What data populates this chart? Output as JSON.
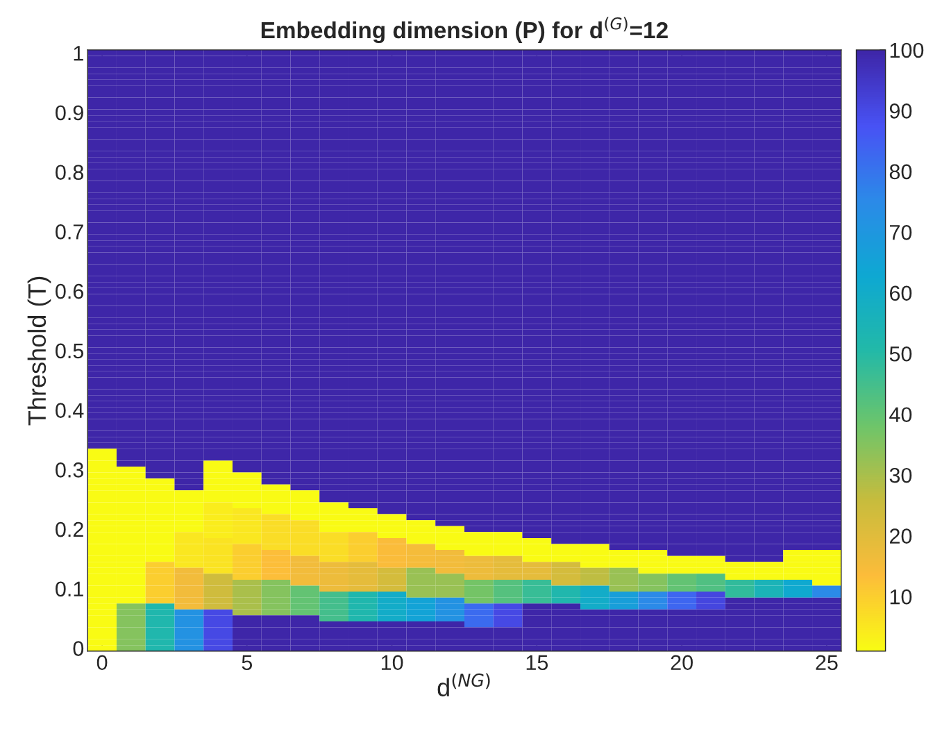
{
  "chart_data": {
    "type": "heatmap",
    "title": "Embedding dimension (P) for d$^{(G)}$=12",
    "xlabel": "d$^{(NG)}$",
    "ylabel": "Threshold (T)",
    "x": [
      0,
      1,
      2,
      3,
      4,
      5,
      6,
      7,
      8,
      9,
      10,
      11,
      12,
      13,
      14,
      15,
      16,
      17,
      18,
      19,
      20,
      21,
      22,
      23,
      24,
      25
    ],
    "y": [
      1.0,
      0.99,
      0.98,
      0.97,
      0.96,
      0.95,
      0.94,
      0.93,
      0.92,
      0.91,
      0.9,
      0.89,
      0.88,
      0.87,
      0.86,
      0.85,
      0.84,
      0.83,
      0.82,
      0.81,
      0.8,
      0.79,
      0.78,
      0.77,
      0.76,
      0.75,
      0.74,
      0.73,
      0.72,
      0.71,
      0.7,
      0.69,
      0.68,
      0.67,
      0.66,
      0.65,
      0.64,
      0.63,
      0.62,
      0.61,
      0.6,
      0.59,
      0.58,
      0.57,
      0.56,
      0.55,
      0.54,
      0.53,
      0.52,
      0.51,
      0.5,
      0.49,
      0.48,
      0.47,
      0.46,
      0.45,
      0.44,
      0.43,
      0.42,
      0.41,
      0.4,
      0.39,
      0.38,
      0.37,
      0.36,
      0.35,
      0.34,
      0.33,
      0.32,
      0.31,
      0.3,
      0.29,
      0.28,
      0.27,
      0.26,
      0.25,
      0.24,
      0.23,
      0.22,
      0.21,
      0.2,
      0.19,
      0.18,
      0.17,
      0.16,
      0.15,
      0.14,
      0.13,
      0.12,
      0.11,
      0.1,
      0.09,
      0.08,
      0.07,
      0.06,
      0.05,
      0.04,
      0.03,
      0.02,
      0.01,
      0.0
    ],
    "xlim": [
      -0.5,
      25.5
    ],
    "ylim": [
      -0.005,
      1.005
    ],
    "xticks": [
      0,
      5,
      10,
      15,
      20,
      25
    ],
    "yticks": [
      0,
      0.1,
      0.2,
      0.3,
      0.4,
      0.5,
      0.6,
      0.7,
      0.8,
      0.9,
      1
    ],
    "clim": [
      1,
      100
    ],
    "cticks": [
      10,
      20,
      30,
      40,
      50,
      60,
      70,
      80,
      90,
      100
    ],
    "cells": [
      [
        100,
        100,
        100,
        100,
        100,
        100,
        100,
        100,
        100,
        100,
        100,
        100,
        100,
        100,
        100,
        100,
        100,
        100,
        100,
        100,
        100,
        100,
        100,
        100,
        100,
        100
      ],
      [
        100,
        100,
        100,
        100,
        100,
        100,
        100,
        100,
        100,
        100,
        100,
        100,
        100,
        100,
        100,
        100,
        100,
        100,
        100,
        100,
        100,
        100,
        100,
        100,
        100,
        100
      ],
      [
        100,
        100,
        100,
        100,
        100,
        100,
        100,
        100,
        100,
        100,
        100,
        100,
        100,
        100,
        100,
        100,
        100,
        100,
        100,
        100,
        100,
        100,
        100,
        100,
        100,
        100
      ],
      [
        100,
        100,
        100,
        100,
        100,
        100,
        100,
        100,
        100,
        100,
        100,
        100,
        100,
        100,
        100,
        100,
        100,
        100,
        100,
        100,
        100,
        100,
        100,
        100,
        100,
        100
      ],
      [
        100,
        100,
        100,
        100,
        100,
        100,
        100,
        100,
        100,
        100,
        100,
        100,
        100,
        100,
        100,
        100,
        100,
        100,
        100,
        100,
        100,
        100,
        100,
        100,
        100,
        100
      ],
      [
        100,
        100,
        100,
        100,
        100,
        100,
        100,
        100,
        100,
        100,
        100,
        100,
        100,
        100,
        100,
        100,
        100,
        100,
        100,
        100,
        100,
        100,
        100,
        100,
        100,
        100
      ],
      [
        100,
        100,
        100,
        100,
        100,
        100,
        100,
        100,
        100,
        100,
        100,
        100,
        100,
        100,
        100,
        100,
        100,
        100,
        100,
        100,
        100,
        100,
        100,
        100,
        100,
        100
      ],
      [
        100,
        100,
        100,
        100,
        100,
        100,
        100,
        100,
        100,
        100,
        100,
        100,
        100,
        100,
        100,
        100,
        100,
        100,
        100,
        100,
        100,
        100,
        100,
        100,
        100,
        100
      ],
      [
        100,
        100,
        100,
        100,
        100,
        100,
        100,
        100,
        100,
        100,
        100,
        100,
        100,
        100,
        100,
        100,
        100,
        100,
        100,
        100,
        100,
        100,
        100,
        100,
        100,
        100
      ],
      [
        100,
        100,
        100,
        100,
        100,
        100,
        100,
        100,
        100,
        100,
        100,
        100,
        100,
        100,
        100,
        100,
        100,
        100,
        100,
        100,
        100,
        100,
        100,
        100,
        100,
        100
      ],
      [
        100,
        100,
        100,
        100,
        100,
        100,
        100,
        100,
        100,
        100,
        100,
        100,
        100,
        100,
        100,
        100,
        100,
        100,
        100,
        100,
        100,
        100,
        100,
        100,
        100,
        100
      ],
      [
        100,
        100,
        100,
        100,
        100,
        100,
        100,
        100,
        100,
        100,
        100,
        100,
        100,
        100,
        100,
        100,
        100,
        100,
        100,
        100,
        100,
        100,
        100,
        100,
        100,
        100
      ],
      [
        100,
        100,
        100,
        100,
        100,
        100,
        100,
        100,
        100,
        100,
        100,
        100,
        100,
        100,
        100,
        100,
        100,
        100,
        100,
        100,
        100,
        100,
        100,
        100,
        100,
        100
      ],
      [
        100,
        100,
        100,
        100,
        100,
        100,
        100,
        100,
        100,
        100,
        100,
        100,
        100,
        100,
        100,
        100,
        100,
        100,
        100,
        100,
        100,
        100,
        100,
        100,
        100,
        100
      ],
      [
        100,
        100,
        100,
        100,
        100,
        100,
        100,
        100,
        100,
        100,
        100,
        100,
        100,
        100,
        100,
        100,
        100,
        100,
        100,
        100,
        100,
        100,
        100,
        100,
        100,
        100
      ],
      [
        100,
        100,
        100,
        100,
        100,
        100,
        100,
        100,
        100,
        100,
        100,
        100,
        100,
        100,
        100,
        100,
        100,
        100,
        100,
        100,
        100,
        100,
        100,
        100,
        100,
        100
      ],
      [
        100,
        100,
        100,
        100,
        100,
        100,
        100,
        100,
        100,
        100,
        100,
        100,
        100,
        100,
        100,
        100,
        100,
        100,
        100,
        100,
        100,
        100,
        100,
        100,
        100,
        100
      ],
      [
        100,
        100,
        100,
        100,
        100,
        100,
        100,
        100,
        100,
        100,
        100,
        100,
        100,
        100,
        100,
        100,
        100,
        100,
        100,
        100,
        100,
        100,
        100,
        100,
        100,
        100
      ],
      [
        100,
        100,
        100,
        100,
        100,
        100,
        100,
        100,
        100,
        100,
        100,
        100,
        100,
        100,
        100,
        100,
        100,
        100,
        100,
        100,
        100,
        100,
        100,
        100,
        100,
        100
      ],
      [
        100,
        100,
        100,
        100,
        100,
        100,
        100,
        100,
        100,
        100,
        100,
        100,
        100,
        100,
        100,
        100,
        100,
        100,
        100,
        100,
        100,
        100,
        100,
        100,
        100,
        100
      ],
      [
        100,
        100,
        100,
        100,
        100,
        100,
        100,
        100,
        100,
        100,
        100,
        100,
        100,
        100,
        100,
        100,
        100,
        100,
        100,
        100,
        100,
        100,
        100,
        100,
        100,
        100
      ],
      [
        100,
        100,
        100,
        100,
        100,
        100,
        100,
        100,
        100,
        100,
        100,
        100,
        100,
        100,
        100,
        100,
        100,
        100,
        100,
        100,
        100,
        100,
        100,
        100,
        100,
        100
      ],
      [
        100,
        100,
        100,
        100,
        100,
        100,
        100,
        100,
        100,
        100,
        100,
        100,
        100,
        100,
        100,
        100,
        100,
        100,
        100,
        100,
        100,
        100,
        100,
        100,
        100,
        100
      ],
      [
        100,
        100,
        100,
        100,
        100,
        100,
        100,
        100,
        100,
        100,
        100,
        100,
        100,
        100,
        100,
        100,
        100,
        100,
        100,
        100,
        100,
        100,
        100,
        100,
        100,
        100
      ],
      [
        100,
        100,
        100,
        100,
        100,
        100,
        100,
        100,
        100,
        100,
        100,
        100,
        100,
        100,
        100,
        100,
        100,
        100,
        100,
        100,
        100,
        100,
        100,
        100,
        100,
        100
      ],
      [
        100,
        100,
        100,
        100,
        100,
        100,
        100,
        100,
        100,
        100,
        100,
        100,
        100,
        100,
        100,
        100,
        100,
        100,
        100,
        100,
        100,
        100,
        100,
        100,
        100,
        100
      ],
      [
        100,
        100,
        100,
        100,
        100,
        100,
        100,
        100,
        100,
        100,
        100,
        100,
        100,
        100,
        100,
        100,
        100,
        100,
        100,
        100,
        100,
        100,
        100,
        100,
        100,
        100
      ],
      [
        100,
        100,
        100,
        100,
        100,
        100,
        100,
        100,
        100,
        100,
        100,
        100,
        100,
        100,
        100,
        100,
        100,
        100,
        100,
        100,
        100,
        100,
        100,
        100,
        100,
        100
      ],
      [
        100,
        100,
        100,
        100,
        100,
        100,
        100,
        100,
        100,
        100,
        100,
        100,
        100,
        100,
        100,
        100,
        100,
        100,
        100,
        100,
        100,
        100,
        100,
        100,
        100,
        100
      ],
      [
        100,
        100,
        100,
        100,
        100,
        100,
        100,
        100,
        100,
        100,
        100,
        100,
        100,
        100,
        100,
        100,
        100,
        100,
        100,
        100,
        100,
        100,
        100,
        100,
        100,
        100
      ],
      [
        100,
        100,
        100,
        100,
        100,
        100,
        100,
        100,
        100,
        100,
        100,
        100,
        100,
        100,
        100,
        100,
        100,
        100,
        100,
        100,
        100,
        100,
        100,
        100,
        100,
        100
      ],
      [
        100,
        100,
        100,
        100,
        100,
        100,
        100,
        100,
        100,
        100,
        100,
        100,
        100,
        100,
        100,
        100,
        100,
        100,
        100,
        100,
        100,
        100,
        100,
        100,
        100,
        100
      ],
      [
        100,
        100,
        100,
        100,
        100,
        100,
        100,
        100,
        100,
        100,
        100,
        100,
        100,
        100,
        100,
        100,
        100,
        100,
        100,
        100,
        100,
        100,
        100,
        100,
        100,
        100
      ],
      [
        100,
        100,
        100,
        100,
        100,
        100,
        100,
        100,
        100,
        100,
        100,
        100,
        100,
        100,
        100,
        100,
        100,
        100,
        100,
        100,
        100,
        100,
        100,
        100,
        100,
        100
      ],
      [
        100,
        100,
        100,
        100,
        100,
        100,
        100,
        100,
        100,
        100,
        100,
        100,
        100,
        100,
        100,
        100,
        100,
        100,
        100,
        100,
        100,
        100,
        100,
        100,
        100,
        100
      ],
      [
        100,
        100,
        100,
        100,
        100,
        100,
        100,
        100,
        100,
        100,
        100,
        100,
        100,
        100,
        100,
        100,
        100,
        100,
        100,
        100,
        100,
        100,
        100,
        100,
        100,
        100
      ],
      [
        100,
        100,
        100,
        100,
        100,
        100,
        100,
        100,
        100,
        100,
        100,
        100,
        100,
        100,
        100,
        100,
        100,
        100,
        100,
        100,
        100,
        100,
        100,
        100,
        100,
        100
      ],
      [
        100,
        100,
        100,
        100,
        100,
        100,
        100,
        100,
        100,
        100,
        100,
        100,
        100,
        100,
        100,
        100,
        100,
        100,
        100,
        100,
        100,
        100,
        100,
        100,
        100,
        100
      ],
      [
        100,
        100,
        100,
        100,
        100,
        100,
        100,
        100,
        100,
        100,
        100,
        100,
        100,
        100,
        100,
        100,
        100,
        100,
        100,
        100,
        100,
        100,
        100,
        100,
        100,
        100
      ],
      [
        100,
        100,
        100,
        100,
        100,
        100,
        100,
        100,
        100,
        100,
        100,
        100,
        100,
        100,
        100,
        100,
        100,
        100,
        100,
        100,
        100,
        100,
        100,
        100,
        100,
        100
      ],
      [
        100,
        100,
        100,
        100,
        100,
        100,
        100,
        100,
        100,
        100,
        100,
        100,
        100,
        100,
        100,
        100,
        100,
        100,
        100,
        100,
        100,
        100,
        100,
        100,
        100,
        100
      ],
      [
        100,
        100,
        100,
        100,
        100,
        100,
        100,
        100,
        100,
        100,
        100,
        100,
        100,
        100,
        100,
        100,
        100,
        100,
        100,
        100,
        100,
        100,
        100,
        100,
        100,
        100
      ],
      [
        100,
        100,
        100,
        100,
        100,
        100,
        100,
        100,
        100,
        100,
        100,
        100,
        100,
        100,
        100,
        100,
        100,
        100,
        100,
        100,
        100,
        100,
        100,
        100,
        100,
        100
      ],
      [
        100,
        100,
        100,
        100,
        100,
        100,
        100,
        100,
        100,
        100,
        100,
        100,
        100,
        100,
        100,
        100,
        100,
        100,
        100,
        100,
        100,
        100,
        100,
        100,
        100,
        100
      ],
      [
        100,
        100,
        100,
        100,
        100,
        100,
        100,
        100,
        100,
        100,
        100,
        100,
        100,
        100,
        100,
        100,
        100,
        100,
        100,
        100,
        100,
        100,
        100,
        100,
        100,
        100
      ],
      [
        100,
        100,
        100,
        100,
        100,
        100,
        100,
        100,
        100,
        100,
        100,
        100,
        100,
        100,
        100,
        100,
        100,
        100,
        100,
        100,
        100,
        100,
        100,
        100,
        100,
        100
      ],
      [
        100,
        100,
        100,
        100,
        100,
        100,
        100,
        100,
        100,
        100,
        100,
        100,
        100,
        100,
        100,
        100,
        100,
        100,
        100,
        100,
        100,
        100,
        100,
        100,
        100,
        100
      ],
      [
        100,
        100,
        100,
        100,
        100,
        100,
        100,
        100,
        100,
        100,
        100,
        100,
        100,
        100,
        100,
        100,
        100,
        100,
        100,
        100,
        100,
        100,
        100,
        100,
        100,
        100
      ],
      [
        100,
        100,
        100,
        100,
        100,
        100,
        100,
        100,
        100,
        100,
        100,
        100,
        100,
        100,
        100,
        100,
        100,
        100,
        100,
        100,
        100,
        100,
        100,
        100,
        100,
        100
      ],
      [
        100,
        100,
        100,
        100,
        100,
        100,
        100,
        100,
        100,
        100,
        100,
        100,
        100,
        100,
        100,
        100,
        100,
        100,
        100,
        100,
        100,
        100,
        100,
        100,
        100,
        100
      ],
      [
        100,
        100,
        100,
        100,
        100,
        100,
        100,
        100,
        100,
        100,
        100,
        100,
        100,
        100,
        100,
        100,
        100,
        100,
        100,
        100,
        100,
        100,
        100,
        100,
        100,
        100
      ],
      [
        100,
        100,
        100,
        100,
        100,
        100,
        100,
        100,
        100,
        100,
        100,
        100,
        100,
        100,
        100,
        100,
        100,
        100,
        100,
        100,
        100,
        100,
        100,
        100,
        100,
        100
      ],
      [
        100,
        100,
        100,
        100,
        100,
        100,
        100,
        100,
        100,
        100,
        100,
        100,
        100,
        100,
        100,
        100,
        100,
        100,
        100,
        100,
        100,
        100,
        100,
        100,
        100,
        100
      ],
      [
        100,
        100,
        100,
        100,
        100,
        100,
        100,
        100,
        100,
        100,
        100,
        100,
        100,
        100,
        100,
        100,
        100,
        100,
        100,
        100,
        100,
        100,
        100,
        100,
        100,
        100
      ],
      [
        100,
        100,
        100,
        100,
        100,
        100,
        100,
        100,
        100,
        100,
        100,
        100,
        100,
        100,
        100,
        100,
        100,
        100,
        100,
        100,
        100,
        100,
        100,
        100,
        100,
        100
      ],
      [
        100,
        100,
        100,
        100,
        100,
        100,
        100,
        100,
        100,
        100,
        100,
        100,
        100,
        100,
        100,
        100,
        100,
        100,
        100,
        100,
        100,
        100,
        100,
        100,
        100,
        100
      ],
      [
        100,
        100,
        100,
        100,
        100,
        100,
        100,
        100,
        100,
        100,
        100,
        100,
        100,
        100,
        100,
        100,
        100,
        100,
        100,
        100,
        100,
        100,
        100,
        100,
        100,
        100
      ],
      [
        100,
        100,
        100,
        100,
        100,
        100,
        100,
        100,
        100,
        100,
        100,
        100,
        100,
        100,
        100,
        100,
        100,
        100,
        100,
        100,
        100,
        100,
        100,
        100,
        100,
        100
      ],
      [
        100,
        100,
        100,
        100,
        100,
        100,
        100,
        100,
        100,
        100,
        100,
        100,
        100,
        100,
        100,
        100,
        100,
        100,
        100,
        100,
        100,
        100,
        100,
        100,
        100,
        100
      ],
      [
        100,
        100,
        100,
        100,
        100,
        100,
        100,
        100,
        100,
        100,
        100,
        100,
        100,
        100,
        100,
        100,
        100,
        100,
        100,
        100,
        100,
        100,
        100,
        100,
        100,
        100
      ],
      [
        100,
        100,
        100,
        100,
        100,
        100,
        100,
        100,
        100,
        100,
        100,
        100,
        100,
        100,
        100,
        100,
        100,
        100,
        100,
        100,
        100,
        100,
        100,
        100,
        100,
        100
      ],
      [
        100,
        100,
        100,
        100,
        100,
        100,
        100,
        100,
        100,
        100,
        100,
        100,
        100,
        100,
        100,
        100,
        100,
        100,
        100,
        100,
        100,
        100,
        100,
        100,
        100,
        100
      ],
      [
        100,
        100,
        100,
        100,
        100,
        100,
        100,
        100,
        100,
        100,
        100,
        100,
        100,
        100,
        100,
        100,
        100,
        100,
        100,
        100,
        100,
        100,
        100,
        100,
        100,
        100
      ],
      [
        100,
        100,
        100,
        100,
        100,
        100,
        100,
        100,
        100,
        100,
        100,
        100,
        100,
        100,
        100,
        100,
        100,
        100,
        100,
        100,
        100,
        100,
        100,
        100,
        100,
        100
      ],
      [
        100,
        100,
        100,
        100,
        100,
        100,
        100,
        100,
        100,
        100,
        100,
        100,
        100,
        100,
        100,
        100,
        100,
        100,
        100,
        100,
        100,
        100,
        100,
        100,
        100,
        100
      ],
      [
        100,
        100,
        100,
        100,
        100,
        100,
        100,
        100,
        100,
        100,
        100,
        100,
        100,
        100,
        100,
        100,
        100,
        100,
        100,
        100,
        100,
        100,
        100,
        100,
        100,
        100
      ],
      [
        100,
        100,
        100,
        100,
        100,
        100,
        100,
        100,
        100,
        100,
        100,
        100,
        100,
        100,
        100,
        100,
        100,
        100,
        100,
        100,
        100,
        100,
        100,
        100,
        100,
        100
      ],
      [
        1,
        100,
        100,
        100,
        100,
        100,
        100,
        100,
        100,
        100,
        100,
        100,
        100,
        100,
        100,
        100,
        100,
        100,
        100,
        100,
        100,
        100,
        100,
        100,
        100,
        100
      ],
      [
        1,
        100,
        100,
        100,
        100,
        100,
        100,
        100,
        100,
        100,
        100,
        100,
        100,
        100,
        100,
        100,
        100,
        100,
        100,
        100,
        100,
        100,
        100,
        100,
        100,
        100
      ],
      [
        1,
        100,
        100,
        100,
        1,
        100,
        100,
        100,
        100,
        100,
        100,
        100,
        100,
        100,
        100,
        100,
        100,
        100,
        100,
        100,
        100,
        100,
        100,
        100,
        100,
        100
      ],
      [
        1,
        1,
        100,
        100,
        1,
        100,
        100,
        100,
        100,
        100,
        100,
        100,
        100,
        100,
        100,
        100,
        100,
        100,
        100,
        100,
        100,
        100,
        100,
        100,
        100,
        100
      ],
      [
        1,
        1,
        100,
        100,
        1,
        1,
        100,
        100,
        100,
        100,
        100,
        100,
        100,
        100,
        100,
        100,
        100,
        100,
        100,
        100,
        100,
        100,
        100,
        100,
        100,
        100
      ],
      [
        1,
        1,
        1,
        100,
        1,
        1,
        100,
        100,
        100,
        100,
        100,
        100,
        100,
        100,
        100,
        100,
        100,
        100,
        100,
        100,
        100,
        100,
        100,
        100,
        100,
        100
      ],
      [
        1,
        1,
        1,
        100,
        1,
        1,
        1,
        100,
        100,
        100,
        100,
        100,
        100,
        100,
        100,
        100,
        100,
        100,
        100,
        100,
        100,
        100,
        100,
        100,
        100,
        100
      ],
      [
        1,
        1,
        1,
        1,
        1,
        1,
        1,
        1,
        100,
        100,
        100,
        100,
        100,
        100,
        100,
        100,
        100,
        100,
        100,
        100,
        100,
        100,
        100,
        100,
        100,
        100
      ],
      [
        1,
        1,
        1,
        1,
        1,
        1,
        1,
        1,
        100,
        100,
        100,
        100,
        100,
        100,
        100,
        100,
        100,
        100,
        100,
        100,
        100,
        100,
        100,
        100,
        100,
        100
      ],
      [
        1,
        1,
        1,
        1,
        4,
        1,
        1,
        1,
        1,
        100,
        100,
        100,
        100,
        100,
        100,
        100,
        100,
        100,
        100,
        100,
        100,
        100,
        100,
        100,
        100,
        100
      ],
      [
        1,
        1,
        1,
        1,
        4,
        5,
        1,
        1,
        1,
        1,
        100,
        100,
        100,
        100,
        100,
        100,
        100,
        100,
        100,
        100,
        100,
        100,
        100,
        100,
        100,
        100
      ],
      [
        1,
        1,
        1,
        1,
        4,
        5,
        7,
        1,
        1,
        1,
        1,
        100,
        100,
        100,
        100,
        100,
        100,
        100,
        100,
        100,
        100,
        100,
        100,
        100,
        100,
        100
      ],
      [
        1,
        1,
        1,
        1,
        4,
        5,
        7,
        7,
        1,
        1,
        1,
        1,
        100,
        100,
        100,
        100,
        100,
        100,
        100,
        100,
        100,
        100,
        100,
        100,
        100,
        100
      ],
      [
        1,
        1,
        1,
        1,
        4,
        5,
        7,
        7,
        1,
        1,
        1,
        1,
        1,
        100,
        100,
        100,
        100,
        100,
        100,
        100,
        100,
        100,
        100,
        100,
        100,
        100
      ],
      [
        1,
        1,
        1,
        5,
        4,
        5,
        7,
        7,
        7,
        10,
        1,
        1,
        1,
        1,
        1,
        100,
        100,
        100,
        100,
        100,
        100,
        100,
        100,
        100,
        100,
        100
      ],
      [
        1,
        1,
        1,
        5,
        6,
        5,
        7,
        7,
        7,
        10,
        14,
        1,
        1,
        1,
        1,
        1,
        100,
        100,
        100,
        100,
        100,
        100,
        100,
        100,
        100,
        100
      ],
      [
        1,
        1,
        1,
        5,
        6,
        10,
        7,
        7,
        7,
        10,
        14,
        15,
        1,
        1,
        1,
        1,
        1,
        1,
        100,
        100,
        100,
        100,
        100,
        100,
        100,
        100
      ],
      [
        1,
        1,
        1,
        5,
        6,
        10,
        13,
        7,
        7,
        10,
        14,
        15,
        16,
        1,
        1,
        1,
        1,
        1,
        1,
        1,
        100,
        100,
        100,
        100,
        1,
        1
      ],
      [
        1,
        1,
        1,
        5,
        6,
        10,
        13,
        16,
        7,
        10,
        14,
        15,
        16,
        17,
        19,
        1,
        1,
        1,
        1,
        1,
        1,
        1,
        100,
        100,
        1,
        1
      ],
      [
        1,
        1,
        10,
        5,
        6,
        10,
        13,
        16,
        17,
        19,
        14,
        15,
        16,
        17,
        19,
        19,
        23,
        1,
        1,
        1,
        1,
        1,
        1,
        1,
        1,
        1
      ],
      [
        1,
        1,
        10,
        16,
        6,
        10,
        13,
        16,
        17,
        19,
        23,
        32,
        16,
        17,
        19,
        19,
        23,
        27,
        32,
        1,
        1,
        1,
        1,
        1,
        1,
        1
      ],
      [
        1,
        1,
        10,
        16,
        24,
        10,
        13,
        16,
        17,
        19,
        23,
        32,
        32,
        17,
        19,
        19,
        23,
        27,
        32,
        35,
        40,
        43,
        1,
        1,
        1,
        1
      ],
      [
        1,
        1,
        10,
        16,
        24,
        30,
        35,
        16,
        17,
        19,
        23,
        32,
        32,
        37,
        42,
        47,
        23,
        27,
        32,
        35,
        40,
        43,
        48,
        55,
        62,
        1
      ],
      [
        1,
        1,
        10,
        16,
        24,
        30,
        35,
        40,
        17,
        19,
        23,
        32,
        32,
        37,
        42,
        47,
        52,
        60,
        32,
        35,
        40,
        43,
        48,
        55,
        62,
        75
      ],
      [
        1,
        1,
        10,
        16,
        24,
        30,
        35,
        40,
        45,
        52,
        60,
        32,
        32,
        37,
        42,
        47,
        52,
        60,
        67,
        75,
        83,
        91,
        48,
        55,
        62,
        75
      ],
      [
        1,
        1,
        10,
        16,
        24,
        30,
        35,
        40,
        45,
        52,
        60,
        65,
        72,
        37,
        42,
        47,
        52,
        60,
        67,
        75,
        83,
        91,
        100,
        100,
        100,
        100
      ],
      [
        1,
        35,
        52,
        16,
        24,
        30,
        35,
        40,
        45,
        52,
        60,
        65,
        72,
        82,
        90,
        100,
        100,
        60,
        67,
        75,
        83,
        91,
        100,
        100,
        100,
        100
      ],
      [
        1,
        35,
        52,
        72,
        90,
        30,
        35,
        40,
        45,
        52,
        60,
        65,
        72,
        82,
        90,
        100,
        100,
        100,
        100,
        100,
        100,
        100,
        100,
        100,
        100,
        100
      ],
      [
        1,
        35,
        52,
        72,
        90,
        100,
        100,
        100,
        45,
        52,
        60,
        65,
        72,
        82,
        90,
        100,
        100,
        100,
        100,
        100,
        100,
        100,
        100,
        100,
        100,
        100
      ],
      [
        1,
        35,
        52,
        72,
        90,
        100,
        100,
        100,
        100,
        100,
        100,
        100,
        100,
        82,
        90,
        100,
        100,
        100,
        100,
        100,
        100,
        100,
        100,
        100,
        100,
        100
      ],
      [
        1,
        35,
        52,
        72,
        90,
        100,
        100,
        100,
        100,
        100,
        100,
        100,
        100,
        100,
        100,
        100,
        100,
        100,
        100,
        100,
        100,
        100,
        100,
        100,
        100,
        100
      ],
      [
        1,
        35,
        52,
        72,
        90,
        100,
        100,
        100,
        100,
        100,
        100,
        100,
        100,
        100,
        100,
        100,
        100,
        100,
        100,
        100,
        100,
        100,
        100,
        100,
        100,
        100
      ],
      [
        1,
        35,
        52,
        72,
        90,
        100,
        100,
        100,
        100,
        100,
        100,
        100,
        100,
        100,
        100,
        100,
        100,
        100,
        100,
        100,
        100,
        100,
        100,
        100,
        100,
        100
      ],
      [
        1,
        35,
        52,
        72,
        90,
        100,
        100,
        100,
        100,
        100,
        100,
        100,
        100,
        100,
        100,
        100,
        100,
        100,
        100,
        100,
        100,
        100,
        100,
        100,
        100,
        100
      ]
    ]
  }
}
